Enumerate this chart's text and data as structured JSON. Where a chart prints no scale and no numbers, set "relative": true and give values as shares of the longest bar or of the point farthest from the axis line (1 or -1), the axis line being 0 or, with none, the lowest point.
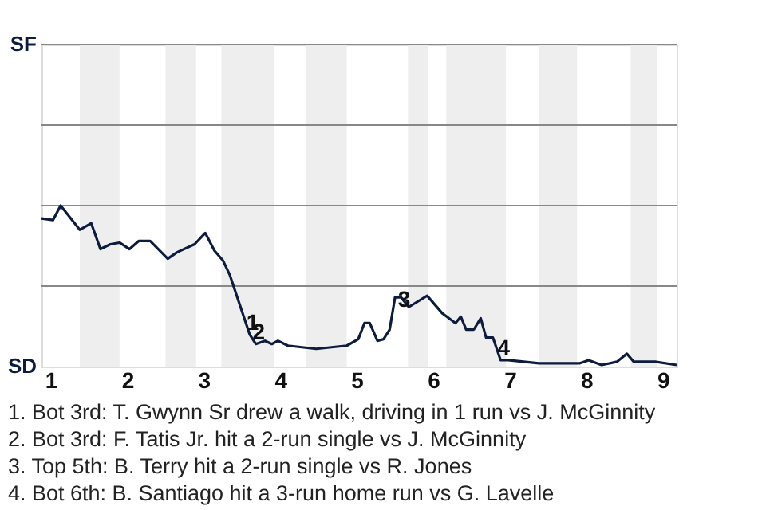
{
  "chart_data": {
    "type": "line",
    "relative": true,
    "x": [
      0.88,
      1.03,
      1.13,
      1.38,
      1.53,
      1.65,
      1.78,
      1.9,
      2.03,
      2.15,
      2.3,
      2.53,
      2.65,
      2.88,
      3.02,
      3.14,
      3.25,
      3.34,
      3.46,
      3.6,
      3.68,
      3.8,
      3.89,
      3.97,
      4.1,
      4.47,
      4.87,
      5.02,
      5.1,
      5.17,
      5.27,
      5.35,
      5.43,
      5.5,
      5.58,
      5.68,
      5.92,
      6.12,
      6.29,
      6.36,
      6.43,
      6.53,
      6.62,
      6.69,
      6.78,
      6.88,
      6.98,
      7.38,
      7.91,
      8.03,
      8.2,
      8.4,
      8.53,
      8.62,
      8.9,
      9.18
    ],
    "series": [
      {
        "color": "#0d1b3e",
        "values": [
          0.92,
          0.91,
          1,
          0.85,
          0.89,
          0.73,
          0.76,
          0.77,
          0.73,
          0.78,
          0.78,
          0.67,
          0.71,
          0.76,
          0.83,
          0.72,
          0.66,
          0.57,
          0.4,
          0.2,
          0.14,
          0.16,
          0.14,
          0.16,
          0.13,
          0.11,
          0.13,
          0.17,
          0.27,
          0.27,
          0.16,
          0.17,
          0.23,
          0.43,
          0.43,
          0.37,
          0.44,
          0.33,
          0.27,
          0.31,
          0.23,
          0.23,
          0.3,
          0.18,
          0.18,
          0.04,
          0.04,
          0.02,
          0.02,
          0.04,
          0.01,
          0.03,
          0.08,
          0.03,
          0.03,
          0.01
        ]
      }
    ],
    "xlim": [
      0.88,
      9.18
    ],
    "xticks": [
      1,
      2,
      3,
      4,
      5,
      6,
      7,
      8,
      9
    ],
    "ref_lines": [
      {
        "axis": "y",
        "value": 0.5,
        "color": "#888888"
      },
      {
        "axis": "y",
        "value": 1,
        "color": "#888888"
      },
      {
        "axis": "y",
        "value": 1.5,
        "color": "#888888"
      },
      {
        "axis": "y",
        "value": 2,
        "color": "#888888"
      }
    ],
    "bands": [
      {
        "axis": "x",
        "from": 1.38,
        "to": 1.9,
        "color": "#eeeeee"
      },
      {
        "axis": "x",
        "from": 2.5,
        "to": 2.9,
        "color": "#eeeeee"
      },
      {
        "axis": "x",
        "from": 3.23,
        "to": 3.92,
        "color": "#eeeeee"
      },
      {
        "axis": "x",
        "from": 4.33,
        "to": 4.87,
        "color": "#eeeeee"
      },
      {
        "axis": "x",
        "from": 5.67,
        "to": 5.93,
        "color": "#eeeeee"
      },
      {
        "axis": "x",
        "from": 6.17,
        "to": 6.95,
        "color": "#eeeeee"
      },
      {
        "axis": "x",
        "from": 7.38,
        "to": 7.88,
        "color": "#eeeeee"
      },
      {
        "axis": "x",
        "from": 8.58,
        "to": 8.93,
        "color": "#eeeeee"
      }
    ],
    "annotations": [
      {
        "text": "SF"
      },
      {
        "text": "SD"
      },
      {
        "text": "1",
        "x": 3.6,
        "y": 0.2
      },
      {
        "text": "2",
        "x": 3.68,
        "y": 0.14
      },
      {
        "text": "3",
        "x": 5.58,
        "y": 0.34
      },
      {
        "text": "4",
        "x": 6.88,
        "y": 0.04
      },
      "1. Bot 3rd: T. Gwynn Sr drew a walk, driving in 1 run vs J. McGinnity",
      "2. Bot 3rd: F. Tatis Jr. hit a 2-run single vs J. McGinnity",
      "3. Top 5th: B. Terry hit a 2-run single vs R. Jones",
      "4. Bot 6th: B. Santiago hit a 3-run home run vs G. Lavelle"
    ]
  }
}
